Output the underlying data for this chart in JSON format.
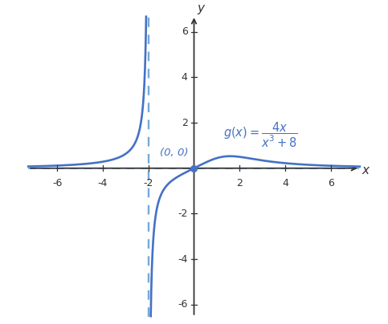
{
  "xlim": [
    -7.5,
    7.5
  ],
  "ylim": [
    -6.8,
    7.0
  ],
  "xticks": [
    -6,
    -4,
    -2,
    2,
    4,
    6
  ],
  "yticks": [
    -6,
    -4,
    -2,
    2,
    4,
    6
  ],
  "curve_color": "#4472C4",
  "asymptote_color": "#5B9BD5",
  "axis_color": "#333333",
  "va_x": -2,
  "ha_y": 0,
  "label_text": "(0, 0)",
  "formula_pos_x": 1.3,
  "formula_pos_y": 0.82,
  "annotation_color": "#4472C4",
  "dpi": 100,
  "figsize": [
    4.83,
    4.04
  ]
}
